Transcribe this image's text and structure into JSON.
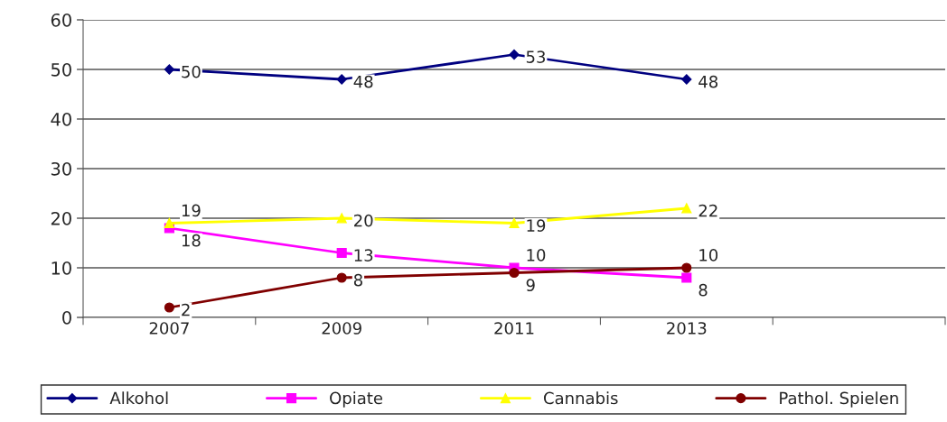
{
  "chart_data": {
    "type": "line",
    "categories": [
      "2007",
      "2009",
      "2011",
      "2013",
      null
    ],
    "series": [
      {
        "name": "Alkohol",
        "color": "#000080",
        "marker": "diamond",
        "values": [
          50,
          48,
          53,
          48,
          null
        ]
      },
      {
        "name": "Opiate",
        "color": "#ff00ff",
        "marker": "square",
        "values": [
          18,
          13,
          10,
          8,
          null
        ]
      },
      {
        "name": "Cannabis",
        "color": "#ffff00",
        "marker": "triangle",
        "values": [
          19,
          20,
          19,
          22,
          null
        ]
      },
      {
        "name": "Pathol. Spielen",
        "color": "#800000",
        "marker": "circle",
        "values": [
          2,
          8,
          9,
          10,
          null
        ]
      }
    ],
    "ylim": [
      0,
      60
    ],
    "yticks": [
      0,
      10,
      20,
      30,
      40,
      50,
      60
    ],
    "grid": "y",
    "legend": "bottom",
    "data_labels": true
  }
}
